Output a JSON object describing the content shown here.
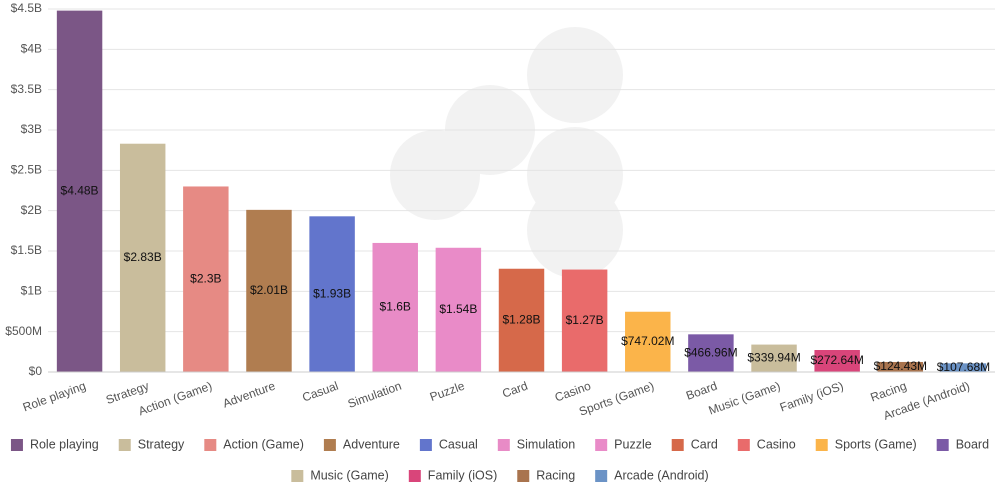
{
  "chart_data": {
    "type": "bar",
    "categories": [
      "Role playing",
      "Strategy",
      "Action (Game)",
      "Adventure",
      "Casual",
      "Simulation",
      "Puzzle",
      "Card",
      "Casino",
      "Sports (Game)",
      "Board",
      "Music (Game)",
      "Family (iOS)",
      "Racing",
      "Arcade (Android)"
    ],
    "values": [
      4480000000,
      2830000000,
      2300000000,
      2010000000,
      1930000000,
      1600000000,
      1540000000,
      1280000000,
      1270000000,
      747020000,
      466960000,
      339940000,
      272640000,
      124430000,
      107680000
    ],
    "value_labels": [
      "$4.48B",
      "$2.83B",
      "$2.3B",
      "$2.01B",
      "$1.93B",
      "$1.6B",
      "$1.54B",
      "$1.28B",
      "$1.27B",
      "$747.02M",
      "$466.96M",
      "$339.94M",
      "$272.64M",
      "$124.43M",
      "$107.68M"
    ],
    "colors": [
      "#7b5686",
      "#c9bd9c",
      "#e68a84",
      "#b07d50",
      "#6275cc",
      "#e88bc6",
      "#e98bc8",
      "#d6694a",
      "#e96b6b",
      "#fbb44a",
      "#7b5aa6",
      "#c9bd9c",
      "#d9457a",
      "#a9744e",
      "#6b93c6"
    ],
    "ylim": [
      0,
      4500000000
    ],
    "yticks": [
      {
        "value": 0,
        "label": "$0"
      },
      {
        "value": 500000000,
        "label": "$500M"
      },
      {
        "value": 1000000000,
        "label": "$1B"
      },
      {
        "value": 1500000000,
        "label": "$1.5B"
      },
      {
        "value": 2000000000,
        "label": "$2B"
      },
      {
        "value": 2500000000,
        "label": "$2.5B"
      },
      {
        "value": 3000000000,
        "label": "$3B"
      },
      {
        "value": 3500000000,
        "label": "$3.5B"
      },
      {
        "value": 4000000000,
        "label": "$4B"
      },
      {
        "value": 4500000000,
        "label": "$4.5B"
      }
    ],
    "grid": true
  }
}
